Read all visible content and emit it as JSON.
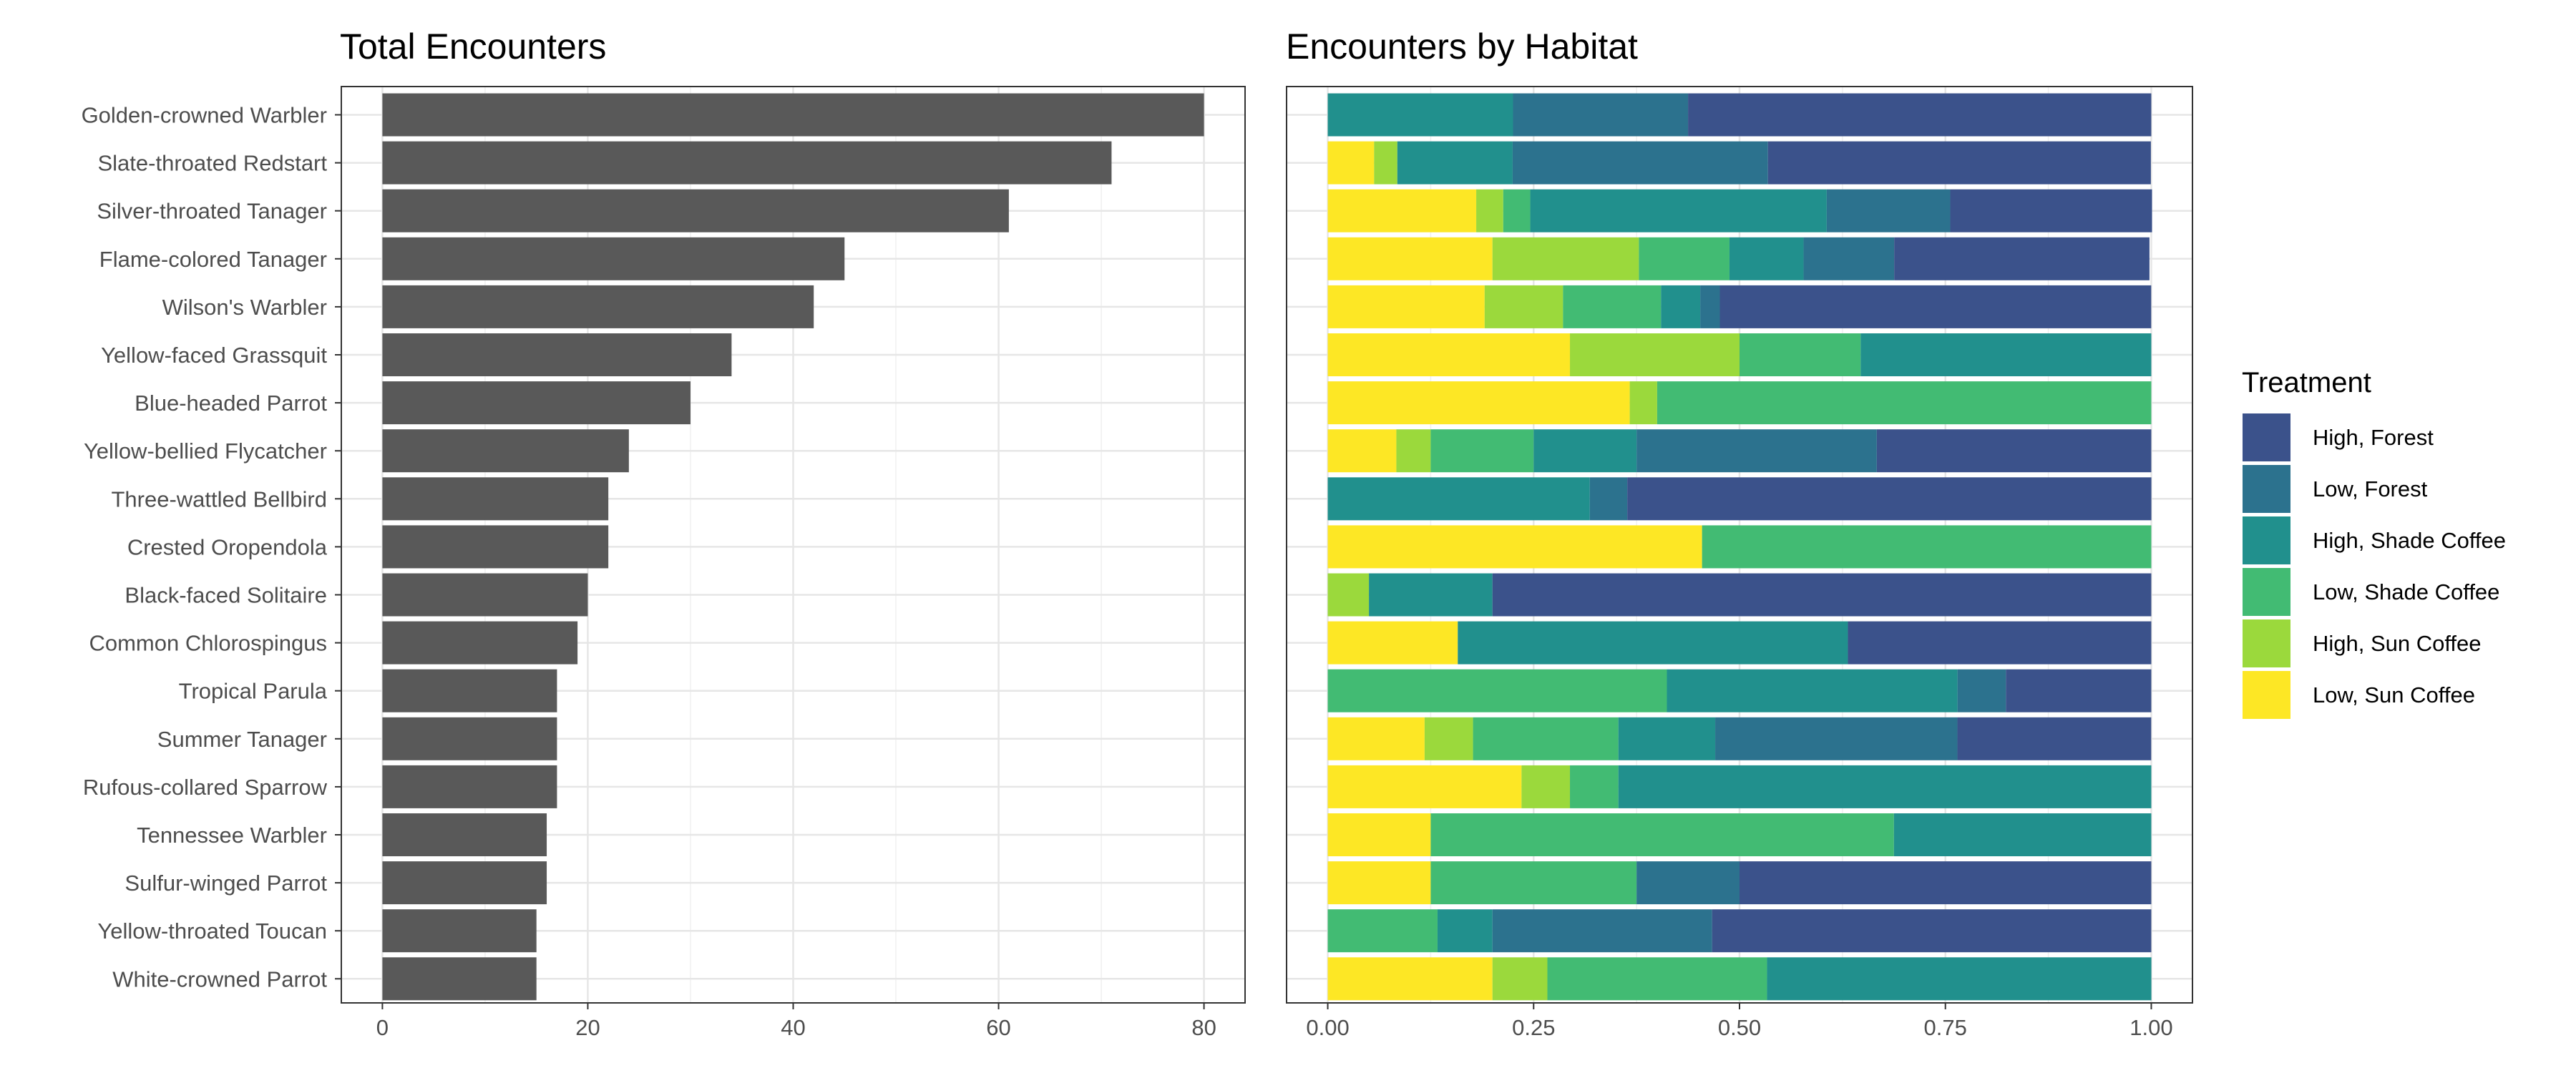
{
  "chart_data": [
    {
      "type": "bar",
      "orientation": "horizontal",
      "title": "Total Encounters",
      "xlabel": "",
      "ylabel": "",
      "xlim": [
        -4,
        84
      ],
      "xticks": [
        0,
        20,
        40,
        60,
        80
      ],
      "xtick_labels": [
        "0",
        "20",
        "40",
        "60",
        "80"
      ],
      "grid": true,
      "bar_color": "#595959",
      "categories": [
        "Golden-crowned Warbler",
        "Slate-throated Redstart",
        "Silver-throated Tanager",
        "Flame-colored Tanager",
        "Wilson's Warbler",
        "Yellow-faced Grassquit",
        "Blue-headed Parrot",
        "Yellow-bellied Flycatcher",
        "Three-wattled Bellbird",
        "Crested Oropendola",
        "Black-faced Solitaire",
        "Common Chlorospingus",
        "Tropical Parula",
        "Summer Tanager",
        "Rufous-collared Sparrow",
        "Tennessee Warbler",
        "Sulfur-winged Parrot",
        "Yellow-throated Toucan",
        "White-crowned Parrot"
      ],
      "values": [
        80,
        71,
        61,
        45,
        42,
        34,
        30,
        24,
        22,
        22,
        20,
        19,
        17,
        17,
        17,
        16,
        16,
        15,
        15
      ]
    },
    {
      "type": "bar",
      "orientation": "horizontal",
      "stacked": "proportion",
      "title": "Encounters by Habitat",
      "xlabel": "",
      "ylabel": "",
      "xlim": [
        -0.05,
        1.05
      ],
      "xticks": [
        0,
        0.25,
        0.5,
        0.75,
        1
      ],
      "xtick_labels": [
        "0.00",
        "0.25",
        "0.50",
        "0.75",
        "1.00"
      ],
      "grid": true,
      "legend_title": "Treatment",
      "legend_position": "right",
      "stack_order": [
        "Low, Sun Coffee",
        "High, Sun Coffee",
        "Low, Shade Coffee",
        "High, Shade Coffee",
        "Low, Forest",
        "High, Forest"
      ],
      "series": [
        {
          "name": "High, Forest",
          "color": "#3b528b",
          "values": [
            0.5625,
            0.465,
            0.245,
            0.31,
            0.5238,
            0,
            0,
            0.3333,
            0.6364,
            0,
            0.8,
            0.3684,
            0.1765,
            0.2353,
            0,
            0,
            0.5,
            0.5333,
            0
          ]
        },
        {
          "name": "Low, Forest",
          "color": "#2c728e",
          "values": [
            0.2125,
            0.31,
            0.15,
            0.11,
            0.0238,
            0,
            0,
            0.2917,
            0.0455,
            0,
            0,
            0,
            0.0588,
            0.2941,
            0,
            0,
            0.125,
            0.2667,
            0
          ]
        },
        {
          "name": "High, Shade Coffee",
          "color": "#21908d",
          "values": [
            0.225,
            0.14,
            0.36,
            0.09,
            0.0476,
            0.3529,
            0,
            0.125,
            0.3182,
            0,
            0.15,
            0.4737,
            0.3529,
            0.1176,
            0.6471,
            0.3125,
            0,
            0.0667,
            0.4667
          ]
        },
        {
          "name": "Low, Shade Coffee",
          "color": "#42bb73",
          "values": [
            0,
            0,
            0.0328,
            0.11,
            0.119,
            0.1471,
            0.6,
            0.125,
            0,
            0.5455,
            0,
            0,
            0.4118,
            0.1765,
            0.0588,
            0.5625,
            0.25,
            0.1333,
            0.2667
          ]
        },
        {
          "name": "High, Sun Coffee",
          "color": "#9bd93c",
          "values": [
            0,
            0.0282,
            0.0328,
            0.1778,
            0.0952,
            0.2059,
            0.0333,
            0.0417,
            0,
            0,
            0.05,
            0,
            0,
            0.0588,
            0.0588,
            0,
            0,
            0,
            0.0667
          ]
        },
        {
          "name": "Low, Sun Coffee",
          "color": "#fde725",
          "values": [
            0,
            0.0563,
            0.1803,
            0.2,
            0.1905,
            0.2941,
            0.3667,
            0.0833,
            0,
            0.4545,
            0,
            0.1579,
            0,
            0.1176,
            0.2353,
            0.125,
            0.125,
            0,
            0.2
          ]
        }
      ]
    }
  ]
}
